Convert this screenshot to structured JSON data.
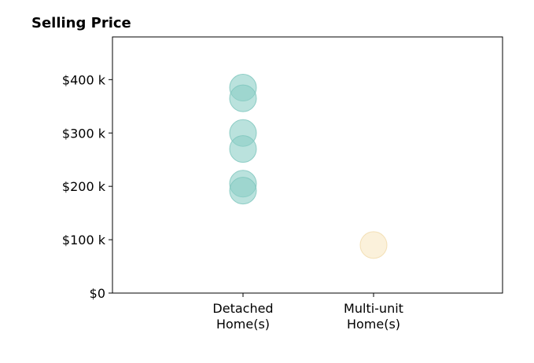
{
  "chart_data": {
    "type": "scatter",
    "title": "Selling Price",
    "xlabel": "",
    "ylabel": "",
    "ylim": [
      0,
      480000
    ],
    "y_ticks": [
      {
        "value": 0,
        "label": "$0"
      },
      {
        "value": 100000,
        "label": "$100 k"
      },
      {
        "value": 200000,
        "label": "$200 k"
      },
      {
        "value": 300000,
        "label": "$300 k"
      },
      {
        "value": 400000,
        "label": "$400 k"
      }
    ],
    "categories": [
      {
        "label_lines": [
          "Detached",
          "Home(s)"
        ]
      },
      {
        "label_lines": [
          "Multi-unit",
          "Home(s)"
        ]
      }
    ],
    "series": [
      {
        "category_index": 0,
        "color": "#8ccfc6",
        "stroke": "#7bc4bb",
        "values": [
          385000,
          365000,
          300000,
          270000,
          205000,
          192000
        ]
      },
      {
        "category_index": 1,
        "color": "#f8e7c3",
        "stroke": "#f0d9a8",
        "values": [
          90000
        ]
      }
    ],
    "grid": false,
    "legend": "none"
  }
}
